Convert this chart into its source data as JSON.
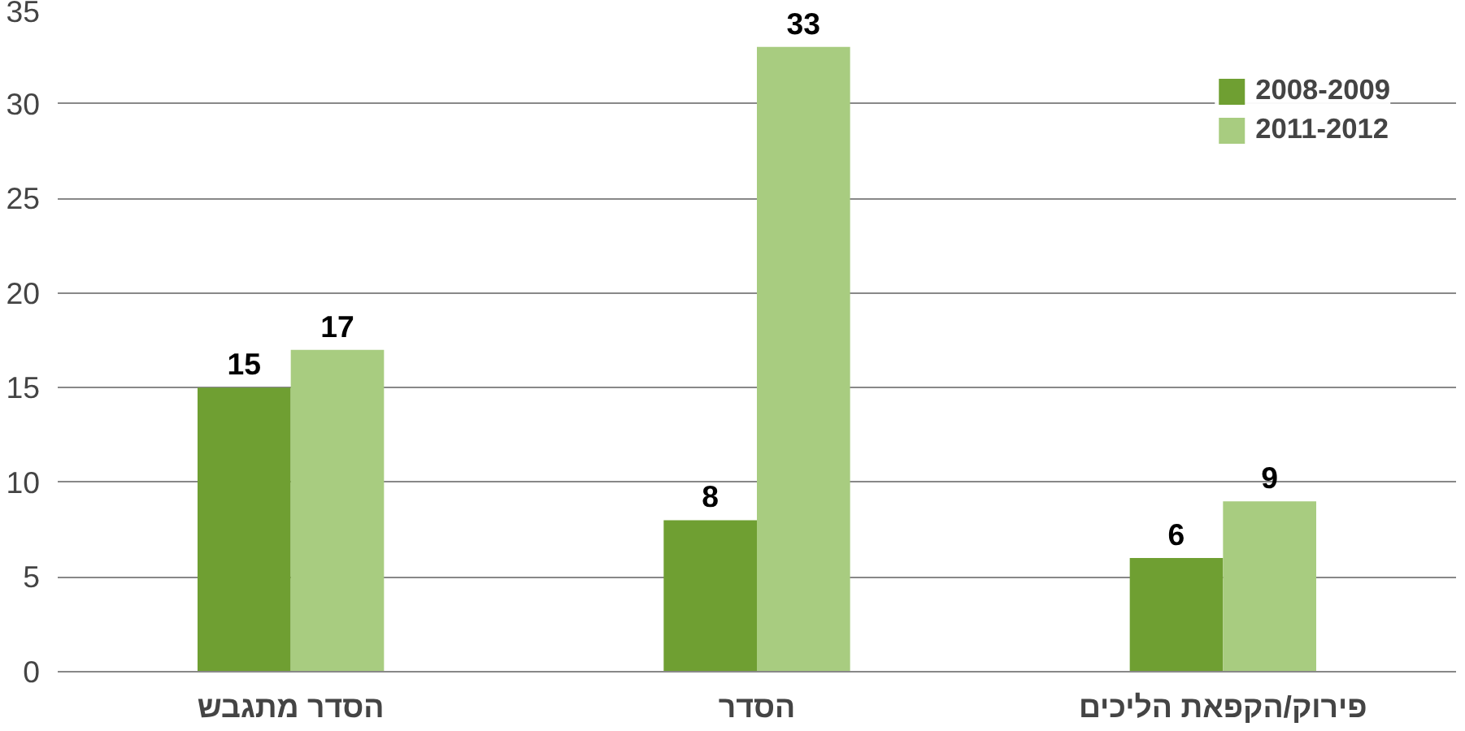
{
  "chart_data": {
    "type": "bar",
    "categories": [
      "הסדר מתגבש",
      "הסדר",
      "פירוק/הקפאת הליכים"
    ],
    "series": [
      {
        "name": "2008-2009",
        "color": "#6f9f32",
        "values": [
          15,
          8,
          6
        ]
      },
      {
        "name": "2011-2012",
        "color": "#a8cc80",
        "values": [
          17,
          33,
          9
        ]
      }
    ],
    "ylim": [
      0,
      35
    ],
    "yticks": [
      0,
      5,
      10,
      15,
      20,
      25,
      30,
      35
    ],
    "grid": "y",
    "legend": "top right",
    "data_labels": true
  }
}
